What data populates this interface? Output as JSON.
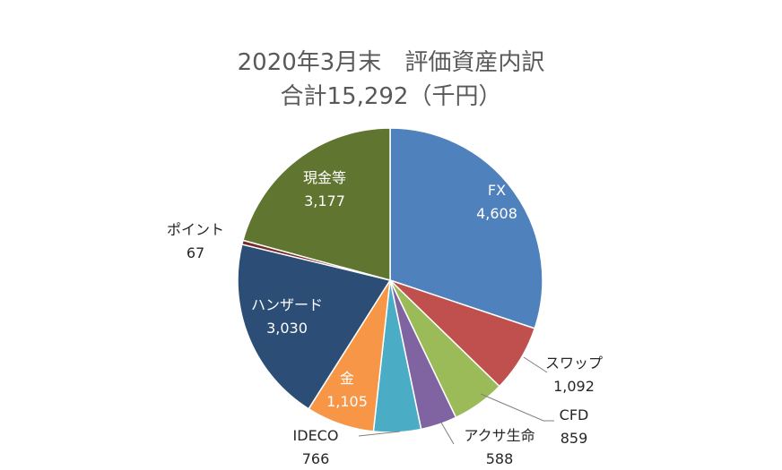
{
  "chart_data": {
    "type": "pie",
    "title": "2020年3月末　評価資産内訳",
    "subtitle": "合計15,292（千円）",
    "slices": [
      {
        "name": "FX",
        "value": 4608,
        "label": "4,608",
        "color": "#4F81BD"
      },
      {
        "name": "スワップ",
        "value": 1092,
        "label": "1,092",
        "color": "#C0504D"
      },
      {
        "name": "CFD",
        "value": 859,
        "label": "859",
        "color": "#9BBB59"
      },
      {
        "name": "アクサ生命",
        "value": 588,
        "label": "588",
        "color": "#8064A2"
      },
      {
        "name": "IDECO",
        "value": 766,
        "label": "766",
        "color": "#4BACC6"
      },
      {
        "name": "金",
        "value": 1105,
        "label": "1,105",
        "color": "#F79646"
      },
      {
        "name": "ハンザード",
        "value": 3030,
        "label": "3,030",
        "color": "#2C4D75"
      },
      {
        "name": "ポイント",
        "value": 67,
        "label": "67",
        "color": "#772C2A"
      },
      {
        "name": "現金等",
        "value": 3177,
        "label": "3,177",
        "color": "#5F7530"
      }
    ]
  }
}
